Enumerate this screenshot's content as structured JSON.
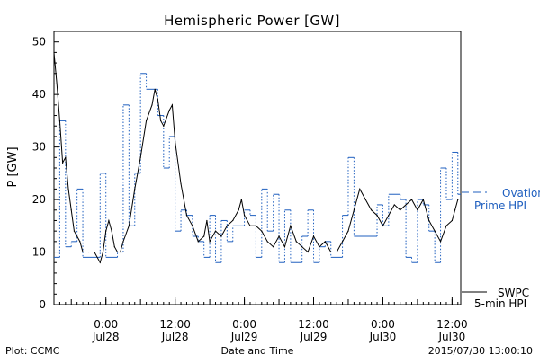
{
  "chart_data": {
    "type": "line",
    "title": "Hemispheric Power [GW]",
    "ylabel": "P [GW]",
    "xlabel": "Date and Time",
    "ylim": [
      0,
      52
    ],
    "yticks": [
      0,
      10,
      20,
      30,
      40,
      50
    ],
    "xlim": [
      "2015-07-27T15:00",
      "2015-07-30T13:30"
    ],
    "xticks": [
      {
        "x": "2015-07-28T00:00",
        "time": "0:00",
        "date": "Jul28"
      },
      {
        "x": "2015-07-28T12:00",
        "time": "12:00",
        "date": "Jul28"
      },
      {
        "x": "2015-07-29T00:00",
        "time": "0:00",
        "date": "Jul29"
      },
      {
        "x": "2015-07-29T12:00",
        "time": "12:00",
        "date": "Jul29"
      },
      {
        "x": "2015-07-30T00:00",
        "time": "0:00",
        "date": "Jul30"
      },
      {
        "x": "2015-07-30T12:00",
        "time": "12:00",
        "date": "Jul30"
      }
    ],
    "grid": false,
    "legend_position": "right",
    "series": [
      {
        "name": "Ovation Prime HPI",
        "color": "#1f5fbf",
        "style": "step",
        "points": [
          [
            "2015-07-27T15:00",
            9
          ],
          [
            "2015-07-27T16:00",
            35
          ],
          [
            "2015-07-27T17:00",
            11
          ],
          [
            "2015-07-27T18:00",
            12
          ],
          [
            "2015-07-27T19:00",
            22
          ],
          [
            "2015-07-27T20:00",
            9
          ],
          [
            "2015-07-27T23:00",
            25
          ],
          [
            "2015-07-28T00:00",
            9
          ],
          [
            "2015-07-28T02:00",
            10
          ],
          [
            "2015-07-28T03:00",
            38
          ],
          [
            "2015-07-28T04:00",
            15
          ],
          [
            "2015-07-28T05:00",
            25
          ],
          [
            "2015-07-28T06:00",
            44
          ],
          [
            "2015-07-28T07:00",
            41
          ],
          [
            "2015-07-28T09:00",
            36
          ],
          [
            "2015-07-28T10:00",
            26
          ],
          [
            "2015-07-28T11:00",
            32
          ],
          [
            "2015-07-28T12:00",
            14
          ],
          [
            "2015-07-28T13:00",
            18
          ],
          [
            "2015-07-28T14:00",
            17
          ],
          [
            "2015-07-28T15:00",
            13
          ],
          [
            "2015-07-28T16:00",
            12
          ],
          [
            "2015-07-28T17:00",
            9
          ],
          [
            "2015-07-28T18:00",
            17
          ],
          [
            "2015-07-28T19:00",
            8
          ],
          [
            "2015-07-28T20:00",
            16
          ],
          [
            "2015-07-28T21:00",
            12
          ],
          [
            "2015-07-28T22:00",
            15
          ],
          [
            "2015-07-29T00:00",
            18
          ],
          [
            "2015-07-29T01:00",
            17
          ],
          [
            "2015-07-29T02:00",
            9
          ],
          [
            "2015-07-29T03:00",
            22
          ],
          [
            "2015-07-29T04:00",
            14
          ],
          [
            "2015-07-29T05:00",
            21
          ],
          [
            "2015-07-29T06:00",
            8
          ],
          [
            "2015-07-29T07:00",
            18
          ],
          [
            "2015-07-29T08:00",
            8
          ],
          [
            "2015-07-29T10:00",
            13
          ],
          [
            "2015-07-29T11:00",
            18
          ],
          [
            "2015-07-29T12:00",
            8
          ],
          [
            "2015-07-29T13:00",
            11
          ],
          [
            "2015-07-29T14:00",
            12
          ],
          [
            "2015-07-29T15:00",
            9
          ],
          [
            "2015-07-29T17:00",
            17
          ],
          [
            "2015-07-29T18:00",
            28
          ],
          [
            "2015-07-29T19:00",
            13
          ],
          [
            "2015-07-29T23:00",
            19
          ],
          [
            "2015-07-30T00:00",
            15
          ],
          [
            "2015-07-30T01:00",
            21
          ],
          [
            "2015-07-30T03:00",
            20
          ],
          [
            "2015-07-30T04:00",
            9
          ],
          [
            "2015-07-30T05:00",
            8
          ],
          [
            "2015-07-30T06:00",
            20
          ],
          [
            "2015-07-30T07:00",
            19
          ],
          [
            "2015-07-30T08:00",
            14
          ],
          [
            "2015-07-30T09:00",
            8
          ],
          [
            "2015-07-30T10:00",
            26
          ],
          [
            "2015-07-30T11:00",
            20
          ],
          [
            "2015-07-30T12:00",
            29
          ],
          [
            "2015-07-30T13:00",
            21
          ]
        ]
      },
      {
        "name": "SWPC 5-min HPI",
        "color": "#000000",
        "style": "line",
        "points": [
          [
            "2015-07-27T15:00",
            48
          ],
          [
            "2015-07-27T15:30",
            42
          ],
          [
            "2015-07-27T16:00",
            35
          ],
          [
            "2015-07-27T16:30",
            27
          ],
          [
            "2015-07-27T17:00",
            28
          ],
          [
            "2015-07-27T17:30",
            22
          ],
          [
            "2015-07-27T18:00",
            18
          ],
          [
            "2015-07-27T18:30",
            14
          ],
          [
            "2015-07-27T19:00",
            13
          ],
          [
            "2015-07-27T19:30",
            12
          ],
          [
            "2015-07-27T20:00",
            10
          ],
          [
            "2015-07-27T21:00",
            10
          ],
          [
            "2015-07-27T22:00",
            10
          ],
          [
            "2015-07-27T23:00",
            8
          ],
          [
            "2015-07-27T23:30",
            10
          ],
          [
            "2015-07-28T00:00",
            14
          ],
          [
            "2015-07-28T00:30",
            16
          ],
          [
            "2015-07-28T01:00",
            14
          ],
          [
            "2015-07-28T01:30",
            11
          ],
          [
            "2015-07-28T02:00",
            10
          ],
          [
            "2015-07-28T02:30",
            10
          ],
          [
            "2015-07-28T03:00",
            12
          ],
          [
            "2015-07-28T04:00",
            15
          ],
          [
            "2015-07-28T05:00",
            22
          ],
          [
            "2015-07-28T06:00",
            28
          ],
          [
            "2015-07-28T07:00",
            35
          ],
          [
            "2015-07-28T08:00",
            38
          ],
          [
            "2015-07-28T08:30",
            41
          ],
          [
            "2015-07-28T09:00",
            39
          ],
          [
            "2015-07-28T09:30",
            35
          ],
          [
            "2015-07-28T10:00",
            34
          ],
          [
            "2015-07-28T11:00",
            37
          ],
          [
            "2015-07-28T11:30",
            38
          ],
          [
            "2015-07-28T12:00",
            31
          ],
          [
            "2015-07-28T13:00",
            23
          ],
          [
            "2015-07-28T14:00",
            17
          ],
          [
            "2015-07-28T15:00",
            15
          ],
          [
            "2015-07-28T16:00",
            12
          ],
          [
            "2015-07-28T17:00",
            13
          ],
          [
            "2015-07-28T17:30",
            16
          ],
          [
            "2015-07-28T18:00",
            12
          ],
          [
            "2015-07-28T19:00",
            14
          ],
          [
            "2015-07-28T20:00",
            13
          ],
          [
            "2015-07-28T21:00",
            15
          ],
          [
            "2015-07-28T22:00",
            16
          ],
          [
            "2015-07-28T23:00",
            18
          ],
          [
            "2015-07-28T23:30",
            20
          ],
          [
            "2015-07-29T00:00",
            17
          ],
          [
            "2015-07-29T01:00",
            15
          ],
          [
            "2015-07-29T02:00",
            15
          ],
          [
            "2015-07-29T03:00",
            14
          ],
          [
            "2015-07-29T04:00",
            12
          ],
          [
            "2015-07-29T05:00",
            11
          ],
          [
            "2015-07-29T06:00",
            13
          ],
          [
            "2015-07-29T07:00",
            11
          ],
          [
            "2015-07-29T08:00",
            15
          ],
          [
            "2015-07-29T09:00",
            12
          ],
          [
            "2015-07-29T10:00",
            11
          ],
          [
            "2015-07-29T11:00",
            10
          ],
          [
            "2015-07-29T12:00",
            13
          ],
          [
            "2015-07-29T13:00",
            11
          ],
          [
            "2015-07-29T14:00",
            12
          ],
          [
            "2015-07-29T15:00",
            10
          ],
          [
            "2015-07-29T16:00",
            10
          ],
          [
            "2015-07-29T17:00",
            12
          ],
          [
            "2015-07-29T18:00",
            14
          ],
          [
            "2015-07-29T19:00",
            18
          ],
          [
            "2015-07-29T20:00",
            22
          ],
          [
            "2015-07-29T21:00",
            20
          ],
          [
            "2015-07-29T22:00",
            18
          ],
          [
            "2015-07-29T23:00",
            17
          ],
          [
            "2015-07-30T00:00",
            15
          ],
          [
            "2015-07-30T01:00",
            17
          ],
          [
            "2015-07-30T02:00",
            19
          ],
          [
            "2015-07-30T03:00",
            18
          ],
          [
            "2015-07-30T04:00",
            19
          ],
          [
            "2015-07-30T05:00",
            20
          ],
          [
            "2015-07-30T06:00",
            18
          ],
          [
            "2015-07-30T07:00",
            20
          ],
          [
            "2015-07-30T08:00",
            16
          ],
          [
            "2015-07-30T09:00",
            14
          ],
          [
            "2015-07-30T10:00",
            12
          ],
          [
            "2015-07-30T11:00",
            15
          ],
          [
            "2015-07-30T12:00",
            16
          ],
          [
            "2015-07-30T12:30",
            18
          ],
          [
            "2015-07-30T13:00",
            20
          ]
        ]
      }
    ],
    "legend": [
      {
        "line1": "Ovation",
        "line2": "Prime HPI",
        "color": "#1f5fbf",
        "marker": "dashed"
      },
      {
        "line1": "SWPC",
        "line2": "5-min HPI",
        "color": "#000000",
        "marker": "solid"
      }
    ]
  },
  "footer": {
    "left": "Plot: CCMC",
    "center": "Date and Time",
    "right": "2015/07/30 13:00:10"
  }
}
